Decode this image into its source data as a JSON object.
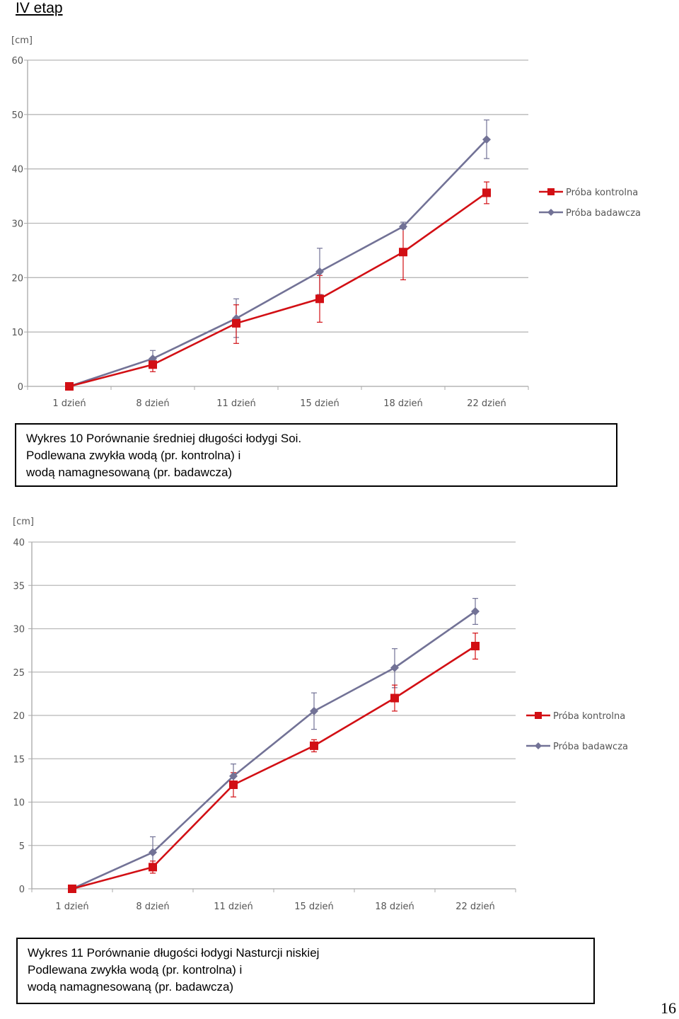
{
  "heading": "IV etap",
  "colors": {
    "kontrolna": "#d20f14",
    "badawcza": "#727296",
    "grid": "#b8b8b8",
    "axis": "#a8a8a8"
  },
  "chart_data": [
    {
      "type": "line",
      "y_unit_label": "[cm]",
      "categories": [
        "1 dzień",
        "8 dzień",
        "11 dzień",
        "15 dzień",
        "18 dzień",
        "22 dzień"
      ],
      "ylim": [
        0,
        60
      ],
      "yticks": [
        0,
        10,
        20,
        30,
        40,
        50,
        60
      ],
      "grid": true,
      "legend_position": "right",
      "series": [
        {
          "name": "Próba kontrolna",
          "marker": "square",
          "color": "#d20f14",
          "values": [
            0,
            4,
            11.6,
            16.1,
            24.7,
            35.6
          ],
          "error_low": [
            0,
            2.7,
            7.9,
            11.8,
            19.6,
            33.6
          ],
          "error_high": [
            0,
            5.2,
            15.0,
            20.4,
            29.5,
            37.6
          ]
        },
        {
          "name": "Próba badawcza",
          "marker": "diamond",
          "color": "#727296",
          "values": [
            0,
            5.1,
            12.5,
            21.1,
            29.4,
            45.4
          ],
          "error_low": [
            0,
            3.6,
            9.0,
            16.9,
            29.0,
            41.9
          ],
          "error_high": [
            0,
            6.6,
            16.1,
            25.4,
            30.2,
            49.0
          ]
        }
      ]
    },
    {
      "type": "line",
      "y_unit_label": "[cm]",
      "categories": [
        "1 dzień",
        "8 dzień",
        "11 dzień",
        "15 dzień",
        "18 dzień",
        "22 dzień"
      ],
      "ylim": [
        0,
        40
      ],
      "yticks": [
        0,
        5,
        10,
        15,
        20,
        25,
        30,
        35,
        40
      ],
      "grid": true,
      "legend_position": "right",
      "series": [
        {
          "name": "Próba kontrolna",
          "marker": "square",
          "color": "#d20f14",
          "values": [
            0,
            2.5,
            12.0,
            16.5,
            22.0,
            28.0
          ],
          "error_low": [
            0,
            1.8,
            10.6,
            15.8,
            20.5,
            26.5
          ],
          "error_high": [
            0,
            3.2,
            13.4,
            17.2,
            23.5,
            29.5
          ]
        },
        {
          "name": "Próba badawcza",
          "marker": "diamond",
          "color": "#727296",
          "values": [
            0,
            4.2,
            13.0,
            20.5,
            25.5,
            32.0
          ],
          "error_low": [
            0,
            2.4,
            11.6,
            18.4,
            23.2,
            30.5
          ],
          "error_high": [
            0,
            6.0,
            14.4,
            22.6,
            27.7,
            33.5
          ]
        }
      ]
    }
  ],
  "captions": [
    {
      "lines": [
        "Wykres 10 Porównanie średniej długości łodygi Soi.",
        "Podlewana zwykła wodą (pr. kontrolna) i",
        "wodą namagnesowaną (pr. badawcza)"
      ]
    },
    {
      "lines": [
        "Wykres 11 Porównanie długości łodygi Nasturcji niskiej",
        "Podlewana zwykła wodą (pr. kontrolna) i",
        "wodą namagnesowaną (pr. badawcza)"
      ]
    }
  ],
  "page_number": "16"
}
